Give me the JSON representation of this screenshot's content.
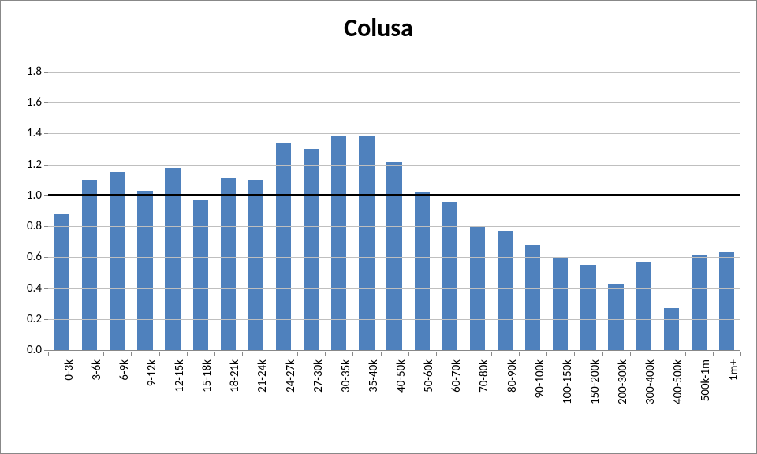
{
  "chart": {
    "title": "Colusa",
    "title_fontsize": 32,
    "type": "bar",
    "categories": [
      "0-3k",
      "3-6k",
      "6-9k",
      "9-12k",
      "12-15k",
      "15-18k",
      "18-21k",
      "21-24k",
      "24-27k",
      "27-30k",
      "30-35k",
      "35-40k",
      "40-50k",
      "50-60k",
      "60-70k",
      "70-80k",
      "80-90k",
      "90-100k",
      "100-150k",
      "150-200k",
      "200-300k",
      "300-400k",
      "400-500k",
      "500k-1m",
      "1m+"
    ],
    "values": [
      0.88,
      1.1,
      1.15,
      1.03,
      1.18,
      0.97,
      1.11,
      1.1,
      1.34,
      1.3,
      1.38,
      1.38,
      1.22,
      1.02,
      0.96,
      0.8,
      0.77,
      0.68,
      0.6,
      0.55,
      0.43,
      0.57,
      0.27,
      0.61,
      0.63
    ],
    "bar_color": "#4f81bd",
    "background_color": "#ffffff",
    "grid_color": "#bfbfbf",
    "ylim": [
      0,
      1.8
    ],
    "ytick_step": 0.2,
    "ytick_labels": [
      "0.0",
      "0.2",
      "0.4",
      "0.6",
      "0.8",
      "1.0",
      "1.2",
      "1.4",
      "1.6",
      "1.8"
    ],
    "reference_line_value": 1.0,
    "label_fontsize": 15,
    "tick_fontsize": 15
  }
}
